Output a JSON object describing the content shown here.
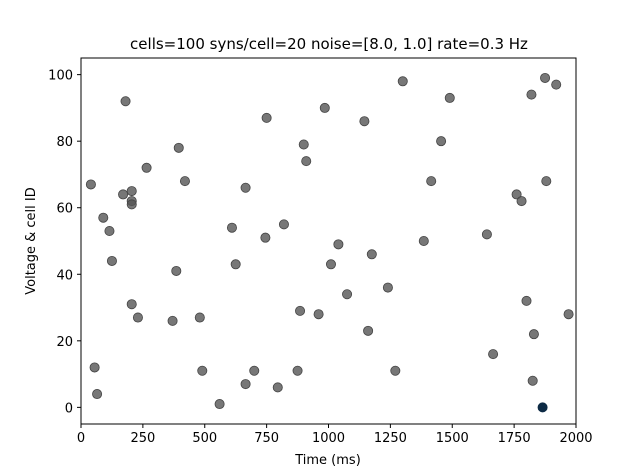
{
  "chart_data": {
    "type": "scatter",
    "title": "cells=100 syns/cell=20 noise=[8.0, 1.0] rate=0.3 Hz",
    "xlabel": "Time (ms)",
    "ylabel": "Voltage & cell ID",
    "xlim": [
      0,
      2000
    ],
    "ylim": [
      -5,
      105
    ],
    "xticks": [
      0,
      250,
      500,
      750,
      1000,
      1250,
      1500,
      1750,
      2000
    ],
    "yticks": [
      0,
      20,
      40,
      60,
      80,
      100
    ],
    "grid": false,
    "colors": {
      "points": "#555555",
      "highlight": "#0d2b45"
    },
    "series": [
      {
        "points": [
          [
            40,
            67
          ],
          [
            55,
            12
          ],
          [
            65,
            4
          ],
          [
            90,
            57
          ],
          [
            115,
            53
          ],
          [
            125,
            44
          ],
          [
            170,
            64
          ],
          [
            180,
            92
          ],
          [
            205,
            65
          ],
          [
            205,
            62
          ],
          [
            205,
            61
          ],
          [
            205,
            31
          ],
          [
            230,
            27
          ],
          [
            265,
            72
          ],
          [
            370,
            26
          ],
          [
            385,
            41
          ],
          [
            395,
            78
          ],
          [
            420,
            68
          ],
          [
            480,
            27
          ],
          [
            490,
            11
          ],
          [
            560,
            1
          ],
          [
            610,
            54
          ],
          [
            625,
            43
          ],
          [
            665,
            66
          ],
          [
            665,
            7
          ],
          [
            700,
            11
          ],
          [
            745,
            51
          ],
          [
            750,
            87
          ],
          [
            795,
            6
          ],
          [
            820,
            55
          ],
          [
            875,
            11
          ],
          [
            885,
            29
          ],
          [
            900,
            79
          ],
          [
            910,
            74
          ],
          [
            960,
            28
          ],
          [
            985,
            90
          ],
          [
            1010,
            43
          ],
          [
            1040,
            49
          ],
          [
            1075,
            34
          ],
          [
            1145,
            86
          ],
          [
            1160,
            23
          ],
          [
            1175,
            46
          ],
          [
            1240,
            36
          ],
          [
            1270,
            11
          ],
          [
            1300,
            98
          ],
          [
            1385,
            50
          ],
          [
            1415,
            68
          ],
          [
            1455,
            80
          ],
          [
            1490,
            93
          ],
          [
            1640,
            52
          ],
          [
            1665,
            16
          ],
          [
            1760,
            64
          ],
          [
            1780,
            62
          ],
          [
            1800,
            32
          ],
          [
            1820,
            94
          ],
          [
            1825,
            8
          ],
          [
            1830,
            22
          ],
          [
            1875,
            99
          ],
          [
            1880,
            68
          ],
          [
            1920,
            97
          ],
          [
            1970,
            28
          ]
        ]
      },
      {
        "points": [
          [
            1865,
            0
          ]
        ]
      }
    ]
  }
}
